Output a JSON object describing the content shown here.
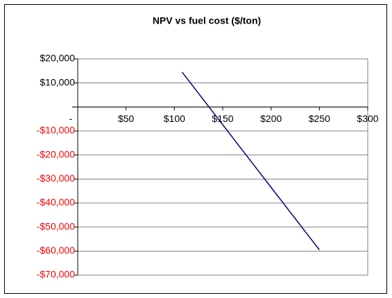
{
  "chart_data": {
    "type": "line",
    "title": "NPV vs fuel cost ($/ton)",
    "x": [
      108,
      250
    ],
    "series": [
      {
        "color": "#000080",
        "values": [
          14500,
          -59500
        ]
      }
    ],
    "xlim": [
      0,
      300
    ],
    "xticks": [
      {
        "value": 0,
        "label": "-"
      },
      {
        "value": 50,
        "label": "$50"
      },
      {
        "value": 100,
        "label": "$100"
      },
      {
        "value": 150,
        "label": "$150"
      },
      {
        "value": 200,
        "label": "$200"
      },
      {
        "value": 250,
        "label": "$250"
      },
      {
        "value": 300,
        "label": "$300"
      }
    ],
    "ylim": [
      -70000,
      20000
    ],
    "yticks": [
      {
        "value": -70000,
        "label": "-$70,000"
      },
      {
        "value": -60000,
        "label": "-$60,000"
      },
      {
        "value": -50000,
        "label": "-$50,000"
      },
      {
        "value": -40000,
        "label": "-$40,000"
      },
      {
        "value": -30000,
        "label": "-$30,000"
      },
      {
        "value": -20000,
        "label": "-$20,000"
      },
      {
        "value": -10000,
        "label": "-$10,000"
      },
      {
        "value": 0,
        "label": "-"
      },
      {
        "value": 10000,
        "label": "$10,000"
      },
      {
        "value": 20000,
        "label": "$20,000"
      }
    ],
    "grid": true,
    "negative_label_color": "#ff0000"
  }
}
